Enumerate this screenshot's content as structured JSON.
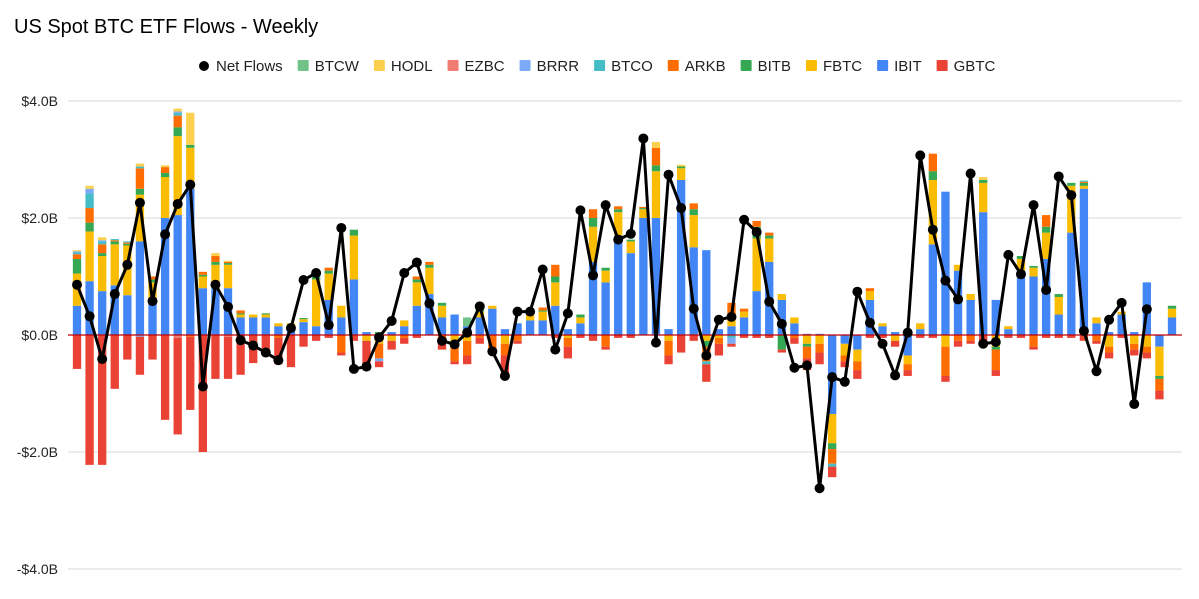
{
  "chart_data": {
    "type": "bar",
    "title": "US Spot BTC ETF Flows - Weekly",
    "ylim": [
      -4.0,
      4.0
    ],
    "yticks": [
      {
        "value": 4,
        "label": "$4.0B"
      },
      {
        "value": 2,
        "label": "$2.0B"
      },
      {
        "value": 0,
        "label": "$0.0B"
      },
      {
        "value": -2,
        "label": "-$2.0B"
      },
      {
        "value": -4,
        "label": "-$4.0B"
      }
    ],
    "grid": true,
    "legend_position": "top",
    "legend": [
      "Net Flows",
      "BTCW",
      "HODL",
      "EZBC",
      "BRRR",
      "BTCO",
      "ARKB",
      "BITB",
      "FBTC",
      "IBIT",
      "GBTC"
    ],
    "series": [
      {
        "name": "IBIT",
        "color": "#4285f4"
      },
      {
        "name": "FBTC",
        "color": "#fbbc04"
      },
      {
        "name": "BITB",
        "color": "#34a853"
      },
      {
        "name": "ARKB",
        "color": "#ff6d01"
      },
      {
        "name": "BTCO",
        "color": "#46bdc6"
      },
      {
        "name": "BRRR",
        "color": "#7baaf7"
      },
      {
        "name": "EZBC",
        "color": "#f07b72"
      },
      {
        "name": "HODL",
        "color": "#fcd04f"
      },
      {
        "name": "BTCW",
        "color": "#71c287"
      },
      {
        "name": "GBTC",
        "color": "#ea4335"
      }
    ],
    "net_flows_series": {
      "name": "Net Flows",
      "color": "#000000"
    },
    "bars": [
      {
        "IBIT": 0.5,
        "FBTC": 0.55,
        "BITB": 0.25,
        "ARKB": 0.08,
        "BTCO": 0.03,
        "BRRR": 0.02,
        "HODL": 0.02,
        "GBTC": -0.58
      },
      {
        "IBIT": 0.92,
        "FBTC": 0.85,
        "BITB": 0.15,
        "ARKB": 0.25,
        "BTCO": 0.25,
        "BRRR": 0.08,
        "HODL": 0.05,
        "GBTC": -2.22
      },
      {
        "IBIT": 0.75,
        "FBTC": 0.6,
        "BITB": 0.05,
        "ARKB": 0.15,
        "BTCO": 0.05,
        "BRRR": 0.02,
        "HODL": 0.05,
        "GBTC": -2.22
      },
      {
        "IBIT": 0.85,
        "FBTC": 0.7,
        "BITB": 0.05,
        "ARKB": 0.02,
        "BTCO": 0.02,
        "GBTC": -0.92
      },
      {
        "IBIT": 0.68,
        "FBTC": 0.85,
        "BITB": 0.03,
        "ARKB": 0.02,
        "BTCO": 0.02,
        "GBTC": -0.42
      },
      {
        "IBIT": 1.6,
        "FBTC": 0.8,
        "BITB": 0.1,
        "ARKB": 0.35,
        "BTCO": 0.03,
        "HODL": 0.05,
        "GBTC": -0.65,
        "BRRR": -0.03
      },
      {
        "IBIT": 0.6,
        "FBTC": 0.3,
        "BITB": 0.05,
        "ARKB": 0.05,
        "GBTC": -0.42
      },
      {
        "IBIT": 2.0,
        "FBTC": 0.7,
        "BITB": 0.07,
        "ARKB": 0.1,
        "HODL": 0.03,
        "GBTC": -1.45
      },
      {
        "IBIT": 2.05,
        "FBTC": 1.35,
        "BITB": 0.15,
        "ARKB": 0.2,
        "BTCO": 0.05,
        "BRRR": 0.02,
        "HODL": 0.05,
        "GBTC": -1.65,
        "EZBC": -0.05
      },
      {
        "IBIT": 2.5,
        "FBTC": 0.7,
        "BITB": 0.05,
        "HODL": 0.55,
        "GBTC": -1.25,
        "ARKB": -0.03
      },
      {
        "IBIT": 0.8,
        "FBTC": 0.2,
        "BITB": 0.03,
        "ARKB": 0.05,
        "GBTC": -2.0
      },
      {
        "IBIT": 0.8,
        "FBTC": 0.4,
        "BITB": 0.05,
        "ARKB": 0.1,
        "HODL": 0.05,
        "GBTC": -0.75
      },
      {
        "IBIT": 0.8,
        "FBTC": 0.4,
        "BITB": 0.03,
        "ARKB": 0.02,
        "HODL": 0.02,
        "GBTC": -0.72,
        "EZBC": -0.03
      },
      {
        "IBIT": 0.3,
        "FBTC": 0.05,
        "BITB": 0.02,
        "ARKB": 0.05,
        "GBTC": -0.68
      },
      {
        "IBIT": 0.3,
        "FBTC": 0.05,
        "GBTC": -0.48
      },
      {
        "IBIT": 0.3,
        "FBTC": 0.05,
        "BITB": 0.02,
        "GBTC": -0.3
      },
      {
        "IBIT": 0.15,
        "FBTC": 0.05,
        "GBTC": -0.45,
        "ARKB": -0.05
      },
      {
        "IBIT": 0.15,
        "FBTC": 0.05,
        "GBTC": -0.55
      },
      {
        "IBIT": 0.22,
        "FBTC": 0.05,
        "BITB": 0.02,
        "GBTC": -0.2
      },
      {
        "IBIT": 0.15,
        "FBTC": 0.8,
        "BITB": 0.05,
        "GBTC": -0.1
      },
      {
        "IBIT": 0.6,
        "FBTC": 0.45,
        "BITB": 0.05,
        "ARKB": 0.05,
        "GBTC": -0.05
      },
      {
        "IBIT": 0.3,
        "FBTC": 0.2,
        "GBTC": -0.05,
        "ARKB": -0.3
      },
      {
        "IBIT": 0.95,
        "FBTC": 0.75,
        "BITB": 0.1,
        "GBTC": -0.1
      },
      {
        "IBIT": 0.05,
        "GBTC": -0.5,
        "FBTC": -0.1
      },
      {
        "BITB": 0.05,
        "GBTC": -0.1,
        "FBTC": -0.15,
        "ARKB": -0.25,
        "BRRR": -0.05
      },
      {
        "IBIT": 0.05,
        "GBTC": -0.15,
        "FBTC": -0.1
      },
      {
        "IBIT": 0.15,
        "FBTC": 0.1,
        "GBTC": -0.1,
        "ARKB": -0.05
      },
      {
        "IBIT": 0.5,
        "FBTC": 0.4,
        "BITB": 0.05,
        "ARKB": 0.05,
        "GBTC": -0.05
      },
      {
        "IBIT": 0.7,
        "FBTC": 0.45,
        "BITB": 0.05,
        "ARKB": 0.05
      },
      {
        "IBIT": 0.3,
        "FBTC": 0.2,
        "BITB": 0.05,
        "GBTC": -0.1,
        "ARKB": -0.15
      },
      {
        "IBIT": 0.35,
        "GBTC": -0.05,
        "BITB": -0.1,
        "ARKB": -0.25,
        "FBTC": -0.1
      },
      {
        "IBIT": 0.15,
        "BTCW": 0.15,
        "GBTC": -0.15,
        "ARKB": -0.25,
        "FBTC": -0.1
      },
      {
        "IBIT": 0.3,
        "FBTC": 0.1,
        "BITB": 0.05,
        "GBTC": -0.1,
        "ARKB": -0.05
      },
      {
        "IBIT": 0.45,
        "FBTC": 0.05,
        "GBTC": -0.05,
        "ARKB": -0.25,
        "FBTC2": 0
      },
      {
        "IBIT": 0.1,
        "GBTC": -0.3,
        "ARKB": -0.2,
        "FBTC": -0.15
      },
      {
        "IBIT": 0.2,
        "GBTC": -0.05,
        "ARKB": -0.1
      },
      {
        "IBIT": 0.25,
        "FBTC": 0.15,
        "BITB": 0.02
      },
      {
        "IBIT": 0.25,
        "FBTC": 0.15,
        "BITB": 0.02,
        "ARKB": 0.05
      },
      {
        "IBIT": 0.5,
        "FBTC": 0.4,
        "BITB": 0.1,
        "ARKB": 0.2,
        "GBTC": -0.05
      },
      {
        "IBIT": 0.1,
        "GBTC": -0.2,
        "ARKB": -0.15,
        "FBTC": -0.05
      },
      {
        "IBIT": 0.2,
        "FBTC": 0.1,
        "BITB": 0.05,
        "GBTC": -0.05
      },
      {
        "IBIT": 1.25,
        "FBTC": 0.6,
        "BITB": 0.15,
        "ARKB": 0.15,
        "GBTC": -0.1
      },
      {
        "IBIT": 0.9,
        "FBTC": 0.2,
        "BITB": 0.05,
        "GBTC": -0.05,
        "ARKB": -0.2
      },
      {
        "IBIT": 1.7,
        "FBTC": 0.4,
        "BITB": 0.05,
        "ARKB": 0.05,
        "GBTC": -0.05
      },
      {
        "IBIT": 1.4,
        "FBTC": 0.2,
        "BITB": 0.03,
        "GBTC": -0.05
      },
      {
        "IBIT": 2.0,
        "FBTC": 0.15,
        "BITB": 0.02,
        "ARKB": 0.02
      },
      {
        "IBIT": 2.0,
        "FBTC": 0.8,
        "BITB": 0.1,
        "ARKB": 0.3,
        "HODL": 0.1
      },
      {
        "IBIT": 0.1,
        "GBTC": -0.15,
        "ARKB": -0.25,
        "FBTC": -0.1
      },
      {
        "IBIT": 2.65,
        "FBTC": 0.2,
        "BITB": 0.03,
        "HODL": 0.03,
        "GBTC": -0.3
      },
      {
        "IBIT": 1.5,
        "FBTC": 0.55,
        "BITB": 0.1,
        "ARKB": 0.1,
        "GBTC": -0.1,
        "FBTC2": 0
      },
      {
        "IBIT": 1.45,
        "GBTC": -0.3,
        "ARKB": -0.25,
        "FBTC": -0.1,
        "BITB": -0.1,
        "BTCO": -0.05
      },
      {
        "IBIT": 0.1,
        "GBTC": -0.2,
        "ARKB": -0.1,
        "FBTC": -0.05
      },
      {
        "IBIT": 0.15,
        "FBTC": 0.1,
        "ARKB": 0.3,
        "GBTC": -0.05,
        "BRRR": -0.1,
        "BTCO": -0.05
      },
      {
        "IBIT": 0.3,
        "FBTC": 0.1,
        "ARKB": 0.05,
        "GBTC": -0.05
      },
      {
        "IBIT": 0.75,
        "FBTC": 0.9,
        "BITB": 0.2,
        "ARKB": 0.1,
        "GBTC": -0.05
      },
      {
        "IBIT": 1.25,
        "FBTC": 0.4,
        "BITB": 0.05,
        "ARKB": 0.05,
        "GBTC": -0.05
      },
      {
        "IBIT": 0.6,
        "FBTC": 0.1,
        "GBTC": -0.05,
        "BITB": -0.25
      },
      {
        "IBIT": 0.2,
        "FBTC": 0.1,
        "GBTC": -0.1,
        "ARKB": -0.05
      },
      {
        "IBIT": 0.02,
        "GBTC": -0.2,
        "ARKB": -0.2,
        "FBTC": -0.15,
        "BITB": -0.05
      },
      {
        "IBIT": 0.02,
        "GBTC": -0.2,
        "ARKB": -0.15,
        "FBTC": -0.15
      },
      {
        "IBIT": -1.35,
        "GBTC": -0.18,
        "FBTC": -0.5,
        "ARKB": -0.25,
        "BITB": -0.1,
        "BTCO": -0.05
      },
      {
        "IBIT": -0.15,
        "GBTC": -0.1,
        "FBTC": -0.2,
        "ARKB": -0.1
      },
      {
        "IBIT": -0.25,
        "GBTC": -0.15,
        "FBTC": -0.2,
        "ARKB": -0.15
      },
      {
        "IBIT": 0.6,
        "FBTC": 0.15,
        "ARKB": 0.05,
        "GBTC": -0.05
      },
      {
        "IBIT": 0.15,
        "FBTC": 0.05,
        "GBTC": -0.05
      },
      {
        "IBIT": 0.05,
        "GBTC": -0.1,
        "FBTC": -0.1
      },
      {
        "IBIT": -0.35,
        "GBTC": -0.1,
        "FBTC": -0.15,
        "ARKB": -0.1
      },
      {
        "IBIT": 0.1,
        "FBTC": 0.1,
        "GBTC": -0.05
      },
      {
        "IBIT": 1.55,
        "FBTC": 1.1,
        "BITB": 0.15,
        "ARKB": 0.3,
        "GBTC": -0.05,
        "HODL": 0
      },
      {
        "IBIT": 2.45,
        "GBTC": -0.1,
        "ARKB": -0.5,
        "FBTC": -0.2
      },
      {
        "IBIT": 1.1,
        "FBTC": 0.1,
        "GBTC": -0.1,
        "ARKB": -0.1
      },
      {
        "IBIT": 0.6,
        "FBTC": 0.1,
        "GBTC": -0.05,
        "ARKB": -0.1
      },
      {
        "IBIT": 2.1,
        "FBTC": 0.5,
        "BITB": 0.05,
        "HODL": 0.05,
        "GBTC": -0.1
      },
      {
        "IBIT": 0.6,
        "GBTC": -0.1,
        "FBTC": -0.2,
        "ARKB": -0.35,
        "BITB": -0.05
      },
      {
        "IBIT": 0.1,
        "FBTC": 0.05,
        "GBTC": -0.05
      },
      {
        "IBIT": 1.1,
        "FBTC": 0.2,
        "BITB": 0.05,
        "GBTC": -0.05
      },
      {
        "IBIT": 1.0,
        "FBTC": 0.15,
        "BITB": 0.03,
        "GBTC": -0.05,
        "ARKB": -0.2
      },
      {
        "IBIT": 1.3,
        "FBTC": 0.45,
        "BITB": 0.1,
        "ARKB": 0.2,
        "GBTC": -0.05
      },
      {
        "IBIT": 0.35,
        "FBTC": 0.3,
        "BITB": 0.05,
        "GBTC": -0.05
      },
      {
        "IBIT": 1.75,
        "FBTC": 0.8,
        "BITB": 0.05,
        "GBTC": -0.05
      },
      {
        "IBIT": 2.5,
        "FBTC": 0.05,
        "BITB": 0.05,
        "ARKB": 0.02,
        "BTCO": 0.02,
        "GBTC": -0.1
      },
      {
        "IBIT": 0.2,
        "FBTC": 0.1,
        "GBTC": -0.05,
        "ARKB": -0.1
      },
      {
        "IBIT": 0.05,
        "GBTC": -0.1,
        "FBTC": -0.2,
        "ARKB": -0.1
      },
      {
        "IBIT": 0.35,
        "FBTC": 0.05,
        "GBTC": -0.05
      },
      {
        "IBIT": 0.05,
        "GBTC": -0.1,
        "FBTC": -0.15,
        "ARKB": -0.1
      },
      {
        "IBIT": 0.9,
        "GBTC": -0.1,
        "FBTC": -0.2,
        "ARKB": -0.1
      },
      {
        "IBIT": -0.2,
        "GBTC": -0.15,
        "FBTC": -0.5,
        "ARKB": -0.2,
        "BITB": -0.05
      },
      {
        "IBIT": 0.3,
        "FBTC": 0.15,
        "BITB": 0.05
      }
    ],
    "net_flows": [
      0.86,
      0.32,
      -0.41,
      0.7,
      1.2,
      2.26,
      0.58,
      1.72,
      2.24,
      2.57,
      -0.88,
      0.86,
      0.48,
      -0.09,
      -0.18,
      -0.3,
      -0.43,
      0.12,
      0.94,
      1.06,
      0.17,
      1.83,
      -0.58,
      -0.54,
      -0.04,
      0.24,
      1.06,
      1.24,
      0.54,
      -0.1,
      -0.16,
      0.04,
      0.49,
      -0.28,
      -0.7,
      0.4,
      0.4,
      1.12,
      -0.25,
      0.37,
      2.13,
      1.02,
      2.22,
      1.63,
      1.73,
      3.36,
      -0.13,
      2.74,
      2.17,
      0.45,
      -0.35,
      0.26,
      0.31,
      1.97,
      1.76,
      0.57,
      0.19,
      -0.56,
      -0.52,
      -2.62,
      -0.72,
      -0.8,
      0.74,
      0.21,
      -0.15,
      -0.69,
      0.04,
      3.07,
      1.8,
      0.93,
      0.61,
      2.76,
      -0.15,
      -0.12,
      1.37,
      1.04,
      2.22,
      0.77,
      2.71,
      2.39,
      0.07,
      -0.62,
      0.26,
      0.55,
      -1.18,
      0.44
    ]
  }
}
